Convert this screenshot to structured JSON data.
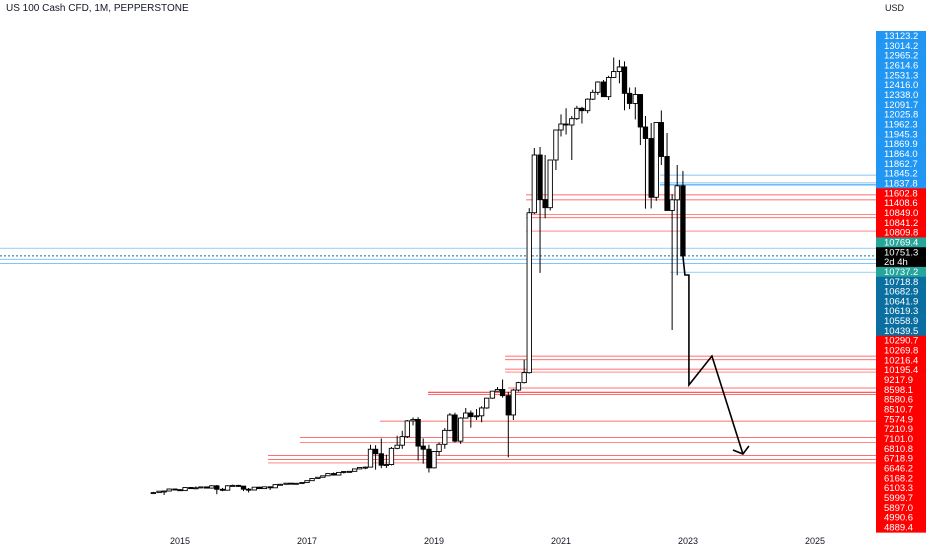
{
  "header": {
    "title": "US 100 Cash CFD, 1M, PEPPERSTONE",
    "currency": "USD"
  },
  "current_price": {
    "value": "10751.3",
    "countdown": "2d 4h"
  },
  "price_labels": [
    {
      "text": "13123.2",
      "color": "#2196f3"
    },
    {
      "text": "13014.2",
      "color": "#2196f3"
    },
    {
      "text": "12965.2",
      "color": "#2196f3"
    },
    {
      "text": "12614.6",
      "color": "#2196f3"
    },
    {
      "text": "12531.3",
      "color": "#2196f3"
    },
    {
      "text": "12416.0",
      "color": "#2196f3"
    },
    {
      "text": "12338.0",
      "color": "#2196f3"
    },
    {
      "text": "12091.7",
      "color": "#2196f3"
    },
    {
      "text": "12025.8",
      "color": "#2196f3"
    },
    {
      "text": "11962.3",
      "color": "#2196f3"
    },
    {
      "text": "11945.3",
      "color": "#2196f3"
    },
    {
      "text": "11869.9",
      "color": "#2196f3"
    },
    {
      "text": "11864.0",
      "color": "#2196f3"
    },
    {
      "text": "11862.7",
      "color": "#2196f3"
    },
    {
      "text": "11845.2",
      "color": "#2196f3"
    },
    {
      "text": "11837.8",
      "color": "#2196f3"
    },
    {
      "text": "11602.8",
      "color": "#ff0000"
    },
    {
      "text": "11408.6",
      "color": "#ff0000"
    },
    {
      "text": "10849.0",
      "color": "#ff0000"
    },
    {
      "text": "10841.2",
      "color": "#ff0000"
    },
    {
      "text": "10809.8",
      "color": "#ff0000"
    },
    {
      "text": "10769.4",
      "color": "#26a69a"
    },
    {
      "text": "10751.3",
      "color": "#000000"
    },
    {
      "text": "2d 4h",
      "color": "#000000"
    },
    {
      "text": "10737.2",
      "color": "#26a69a"
    },
    {
      "text": "10718.8",
      "color": "#0a6fa0"
    },
    {
      "text": "10682.9",
      "color": "#0a6fa0"
    },
    {
      "text": "10641.9",
      "color": "#0a6fa0"
    },
    {
      "text": "10619.3",
      "color": "#0a6fa0"
    },
    {
      "text": "10558.9",
      "color": "#0a6fa0"
    },
    {
      "text": "10439.5",
      "color": "#0a6fa0"
    },
    {
      "text": "10290.7",
      "color": "#ff0000"
    },
    {
      "text": "10269.8",
      "color": "#ff0000"
    },
    {
      "text": "10216.4",
      "color": "#ff0000"
    },
    {
      "text": "10195.4",
      "color": "#ff0000"
    },
    {
      "text": "9217.9",
      "color": "#ff0000"
    },
    {
      "text": "8598.1",
      "color": "#ff0000"
    },
    {
      "text": "8580.6",
      "color": "#ff0000"
    },
    {
      "text": "8510.7",
      "color": "#ff0000"
    },
    {
      "text": "7574.9",
      "color": "#ff0000"
    },
    {
      "text": "7210.9",
      "color": "#ff0000"
    },
    {
      "text": "7101.0",
      "color": "#ff0000"
    },
    {
      "text": "6810.8",
      "color": "#ff0000"
    },
    {
      "text": "6718.9",
      "color": "#ff0000"
    },
    {
      "text": "6646.2",
      "color": "#ff0000"
    },
    {
      "text": "6168.2",
      "color": "#ff0000"
    },
    {
      "text": "6103.3",
      "color": "#ff0000"
    },
    {
      "text": "5999.7",
      "color": "#ff0000"
    },
    {
      "text": "5897.0",
      "color": "#ff0000"
    },
    {
      "text": "4990.6",
      "color": "#ff0000"
    },
    {
      "text": "4889.4",
      "color": "#ff0000"
    }
  ],
  "chart_data": {
    "type": "candlestick",
    "interval": "1M",
    "x_ticks": [
      "2015",
      "2017",
      "2019",
      "2021",
      "2023",
      "2025"
    ],
    "up_color": "#ffffff",
    "down_color": "#000000",
    "level_colors": {
      "resistance": "#ff0000",
      "support": "#2196f3"
    },
    "candles": [
      {
        "t": 2014.58,
        "o": 3900,
        "h": 4010,
        "l": 3860,
        "c": 3940
      },
      {
        "t": 2014.67,
        "o": 3940,
        "h": 4110,
        "l": 3900,
        "c": 4080
      },
      {
        "t": 2014.75,
        "o": 4080,
        "h": 4150,
        "l": 3700,
        "c": 4100
      },
      {
        "t": 2014.83,
        "o": 4100,
        "h": 4340,
        "l": 4080,
        "c": 4300
      },
      {
        "t": 2014.92,
        "o": 4300,
        "h": 4330,
        "l": 4180,
        "c": 4230
      },
      {
        "t": 2015.0,
        "o": 4230,
        "h": 4300,
        "l": 4110,
        "c": 4140
      },
      {
        "t": 2015.08,
        "o": 4140,
        "h": 4480,
        "l": 4120,
        "c": 4450
      },
      {
        "t": 2015.17,
        "o": 4450,
        "h": 4500,
        "l": 4320,
        "c": 4340
      },
      {
        "t": 2015.25,
        "o": 4340,
        "h": 4560,
        "l": 4320,
        "c": 4420
      },
      {
        "t": 2015.33,
        "o": 4420,
        "h": 4540,
        "l": 4380,
        "c": 4510
      },
      {
        "t": 2015.42,
        "o": 4510,
        "h": 4550,
        "l": 4380,
        "c": 4390
      },
      {
        "t": 2015.5,
        "o": 4390,
        "h": 4680,
        "l": 4340,
        "c": 4620
      },
      {
        "t": 2015.58,
        "o": 4620,
        "h": 4700,
        "l": 3780,
        "c": 4270
      },
      {
        "t": 2015.67,
        "o": 4270,
        "h": 4410,
        "l": 4080,
        "c": 4180
      },
      {
        "t": 2015.75,
        "o": 4180,
        "h": 4680,
        "l": 4160,
        "c": 4620
      },
      {
        "t": 2015.83,
        "o": 4620,
        "h": 4740,
        "l": 4570,
        "c": 4660
      },
      {
        "t": 2015.92,
        "o": 4660,
        "h": 4720,
        "l": 4510,
        "c": 4590
      },
      {
        "t": 2016.0,
        "o": 4590,
        "h": 4600,
        "l": 4090,
        "c": 4280
      },
      {
        "t": 2016.08,
        "o": 4280,
        "h": 4400,
        "l": 3950,
        "c": 4200
      },
      {
        "t": 2016.17,
        "o": 4200,
        "h": 4490,
        "l": 4180,
        "c": 4480
      },
      {
        "t": 2016.25,
        "o": 4480,
        "h": 4530,
        "l": 4300,
        "c": 4340
      },
      {
        "t": 2016.33,
        "o": 4340,
        "h": 4540,
        "l": 4320,
        "c": 4520
      },
      {
        "t": 2016.42,
        "o": 4520,
        "h": 4560,
        "l": 4200,
        "c": 4420
      },
      {
        "t": 2016.5,
        "o": 4420,
        "h": 4770,
        "l": 4400,
        "c": 4740
      },
      {
        "t": 2016.58,
        "o": 4740,
        "h": 4820,
        "l": 4710,
        "c": 4770
      },
      {
        "t": 2016.67,
        "o": 4770,
        "h": 4890,
        "l": 4740,
        "c": 4880
      },
      {
        "t": 2016.75,
        "o": 4880,
        "h": 4920,
        "l": 4780,
        "c": 4800
      },
      {
        "t": 2016.83,
        "o": 4800,
        "h": 4900,
        "l": 4740,
        "c": 4870
      },
      {
        "t": 2016.92,
        "o": 4870,
        "h": 4970,
        "l": 4800,
        "c": 4940
      },
      {
        "t": 2017.0,
        "o": 4940,
        "h": 5140,
        "l": 4920,
        "c": 5120
      },
      {
        "t": 2017.08,
        "o": 5120,
        "h": 5360,
        "l": 5100,
        "c": 5330
      },
      {
        "t": 2017.17,
        "o": 5330,
        "h": 5450,
        "l": 5310,
        "c": 5440
      },
      {
        "t": 2017.25,
        "o": 5440,
        "h": 5600,
        "l": 5420,
        "c": 5580
      },
      {
        "t": 2017.33,
        "o": 5580,
        "h": 5820,
        "l": 5560,
        "c": 5790
      },
      {
        "t": 2017.42,
        "o": 5790,
        "h": 5900,
        "l": 5600,
        "c": 5650
      },
      {
        "t": 2017.5,
        "o": 5650,
        "h": 5940,
        "l": 5620,
        "c": 5900
      },
      {
        "t": 2017.58,
        "o": 5900,
        "h": 6000,
        "l": 5800,
        "c": 5990
      },
      {
        "t": 2017.67,
        "o": 5990,
        "h": 6040,
        "l": 5890,
        "c": 6000
      },
      {
        "t": 2017.75,
        "o": 6000,
        "h": 6240,
        "l": 5990,
        "c": 6230
      },
      {
        "t": 2017.83,
        "o": 6230,
        "h": 6400,
        "l": 6200,
        "c": 6370
      },
      {
        "t": 2017.92,
        "o": 6370,
        "h": 6460,
        "l": 6200,
        "c": 6400
      },
      {
        "t": 2018.0,
        "o": 6400,
        "h": 7050,
        "l": 6390,
        "c": 6950
      },
      {
        "t": 2018.08,
        "o": 6950,
        "h": 7040,
        "l": 6160,
        "c": 6850
      },
      {
        "t": 2018.17,
        "o": 6850,
        "h": 7190,
        "l": 6300,
        "c": 6580
      },
      {
        "t": 2018.25,
        "o": 6580,
        "h": 6830,
        "l": 6320,
        "c": 6610
      },
      {
        "t": 2018.33,
        "o": 6610,
        "h": 7000,
        "l": 6560,
        "c": 6970
      },
      {
        "t": 2018.42,
        "o": 6970,
        "h": 7250,
        "l": 6950,
        "c": 7040
      },
      {
        "t": 2018.5,
        "o": 7040,
        "h": 7360,
        "l": 6960,
        "c": 7230
      },
      {
        "t": 2018.58,
        "o": 7230,
        "h": 7600,
        "l": 7200,
        "c": 7580
      },
      {
        "t": 2018.67,
        "o": 7580,
        "h": 7690,
        "l": 7480,
        "c": 7620
      },
      {
        "t": 2018.75,
        "o": 7620,
        "h": 7700,
        "l": 6700,
        "c": 7020
      },
      {
        "t": 2018.83,
        "o": 7020,
        "h": 7190,
        "l": 6630,
        "c": 6950
      },
      {
        "t": 2018.92,
        "o": 6950,
        "h": 7050,
        "l": 5890,
        "c": 6330
      },
      {
        "t": 2019.0,
        "o": 6330,
        "h": 6900,
        "l": 6280,
        "c": 6900
      },
      {
        "t": 2019.08,
        "o": 6900,
        "h": 7100,
        "l": 6800,
        "c": 7060
      },
      {
        "t": 2019.17,
        "o": 7060,
        "h": 7420,
        "l": 6960,
        "c": 7370
      },
      {
        "t": 2019.25,
        "o": 7370,
        "h": 7850,
        "l": 7350,
        "c": 7780
      },
      {
        "t": 2019.33,
        "o": 7780,
        "h": 7860,
        "l": 7100,
        "c": 7130
      },
      {
        "t": 2019.42,
        "o": 7130,
        "h": 7700,
        "l": 7070,
        "c": 7670
      },
      {
        "t": 2019.5,
        "o": 7670,
        "h": 8030,
        "l": 7650,
        "c": 7850
      },
      {
        "t": 2019.58,
        "o": 7850,
        "h": 7940,
        "l": 7430,
        "c": 7720
      },
      {
        "t": 2019.67,
        "o": 7720,
        "h": 7990,
        "l": 7600,
        "c": 7750
      },
      {
        "t": 2019.75,
        "o": 7750,
        "h": 8090,
        "l": 7550,
        "c": 8030
      },
      {
        "t": 2019.83,
        "o": 8030,
        "h": 8390,
        "l": 8000,
        "c": 8380
      },
      {
        "t": 2019.92,
        "o": 8380,
        "h": 8740,
        "l": 8360,
        "c": 8730
      },
      {
        "t": 2020.0,
        "o": 8730,
        "h": 9280,
        "l": 8700,
        "c": 8990
      },
      {
        "t": 2020.08,
        "o": 8990,
        "h": 9740,
        "l": 8400,
        "c": 8470
      },
      {
        "t": 2020.17,
        "o": 8470,
        "h": 8640,
        "l": 6770,
        "c": 7780
      },
      {
        "t": 2020.25,
        "o": 7780,
        "h": 9080,
        "l": 7600,
        "c": 8900
      },
      {
        "t": 2020.33,
        "o": 8900,
        "h": 9600,
        "l": 8700,
        "c": 9550
      },
      {
        "t": 2020.42,
        "o": 9550,
        "h": 10270,
        "l": 9500,
        "c": 10160
      },
      {
        "t": 2020.5,
        "o": 10160,
        "h": 11080,
        "l": 10100,
        "c": 10900
      },
      {
        "t": 2020.58,
        "o": 10900,
        "h": 12440,
        "l": 10850,
        "c": 12300
      },
      {
        "t": 2020.67,
        "o": 12300,
        "h": 12460,
        "l": 10680,
        "c": 11420
      },
      {
        "t": 2020.75,
        "o": 11420,
        "h": 12300,
        "l": 10840,
        "c": 11100
      },
      {
        "t": 2020.83,
        "o": 11100,
        "h": 12200,
        "l": 10990,
        "c": 12200
      },
      {
        "t": 2020.92,
        "o": 12200,
        "h": 12800,
        "l": 12000,
        "c": 12800
      },
      {
        "t": 2021.0,
        "o": 12800,
        "h": 13420,
        "l": 12670,
        "c": 12920
      },
      {
        "t": 2021.08,
        "o": 12920,
        "h": 13880,
        "l": 12710,
        "c": 12900
      },
      {
        "t": 2021.17,
        "o": 12900,
        "h": 13300,
        "l": 12200,
        "c": 13100
      },
      {
        "t": 2021.25,
        "o": 13100,
        "h": 14060,
        "l": 13000,
        "c": 13880
      },
      {
        "t": 2021.33,
        "o": 13880,
        "h": 13990,
        "l": 12930,
        "c": 13700
      },
      {
        "t": 2021.42,
        "o": 13700,
        "h": 14600,
        "l": 13500,
        "c": 14550
      },
      {
        "t": 2021.5,
        "o": 14550,
        "h": 15120,
        "l": 14500,
        "c": 14960
      },
      {
        "t": 2021.58,
        "o": 14960,
        "h": 15620,
        "l": 14800,
        "c": 15580
      },
      {
        "t": 2021.67,
        "o": 15580,
        "h": 15700,
        "l": 14680,
        "c": 14700
      },
      {
        "t": 2021.75,
        "o": 14700,
        "h": 15950,
        "l": 14500,
        "c": 15850
      },
      {
        "t": 2021.83,
        "o": 15850,
        "h": 16760,
        "l": 15830,
        "c": 16150
      },
      {
        "t": 2021.92,
        "o": 16150,
        "h": 16660,
        "l": 15500,
        "c": 16350
      },
      {
        "t": 2022.0,
        "o": 16350,
        "h": 16590,
        "l": 13720,
        "c": 14900
      },
      {
        "t": 2022.08,
        "o": 14900,
        "h": 15250,
        "l": 13820,
        "c": 14240
      },
      {
        "t": 2022.17,
        "o": 14240,
        "h": 15260,
        "l": 13040,
        "c": 14830
      },
      {
        "t": 2022.25,
        "o": 14830,
        "h": 14830,
        "l": 12500,
        "c": 12860
      },
      {
        "t": 2022.33,
        "o": 12860,
        "h": 13300,
        "l": 11060,
        "c": 12630
      },
      {
        "t": 2022.42,
        "o": 12630,
        "h": 12940,
        "l": 11070,
        "c": 11510
      },
      {
        "t": 2022.5,
        "o": 11510,
        "h": 12950,
        "l": 11370,
        "c": 12950
      },
      {
        "t": 2022.58,
        "o": 12950,
        "h": 13720,
        "l": 12100,
        "c": 12270
      },
      {
        "t": 2022.67,
        "o": 12270,
        "h": 12740,
        "l": 10970,
        "c": 10990
      },
      {
        "t": 2022.75,
        "o": 10990,
        "h": 11620,
        "l": 10440,
        "c": 11410
      },
      {
        "t": 2022.83,
        "o": 11410,
        "h": 12100,
        "l": 10670,
        "c": 11820
      },
      {
        "t": 2022.92,
        "o": 11820,
        "h": 11990,
        "l": 10750,
        "c": 10751.3
      }
    ]
  }
}
